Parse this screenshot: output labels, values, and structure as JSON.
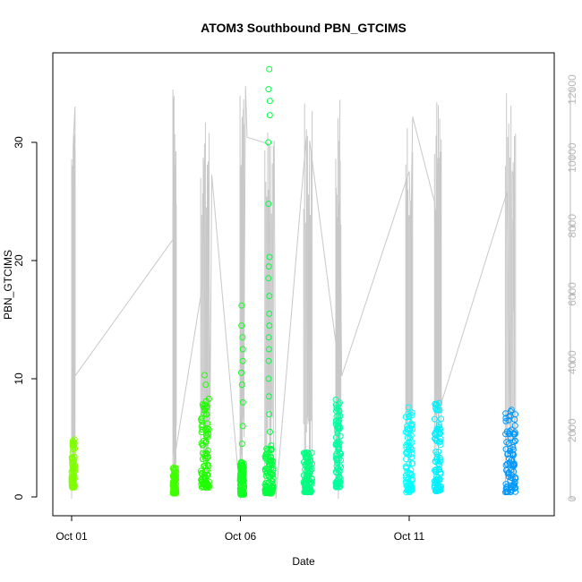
{
  "chart_data": {
    "type": "scatter",
    "title": "ATOM3 Southbound PBN_GTCIMS",
    "xlabel": "Date",
    "ylabel": "PBN_GTCIMS",
    "x_ticks": [
      "Oct 01",
      "Oct 06",
      "Oct 11"
    ],
    "x_tick_days": [
      1,
      6,
      11
    ],
    "xlim_days": [
      1,
      15
    ],
    "ylim": [
      0,
      36
    ],
    "y_ticks": [
      0,
      10,
      20,
      30
    ],
    "y2_ticks": [
      0,
      2000,
      4000,
      6000,
      8000,
      10000,
      12000
    ],
    "y2lim": [
      0,
      12600
    ],
    "point_style": "open circle",
    "colors": {
      "line": "#c8c8c8",
      "right_axis": "#b8b8b8"
    },
    "clusters": [
      {
        "day": 1.05,
        "width": 0.1,
        "ymin": 0.8,
        "ymax": 4.9,
        "color": "#80ff00",
        "outliers": []
      },
      {
        "day": 4.05,
        "width": 0.1,
        "ymin": 0.3,
        "ymax": 2.5,
        "color": "#40ff00",
        "outliers": []
      },
      {
        "day": 4.95,
        "width": 0.25,
        "ymin": 0.8,
        "ymax": 8.5,
        "color": "#20ff00",
        "outliers": [
          10.3,
          9.5
        ]
      },
      {
        "day": 6.05,
        "width": 0.12,
        "ymin": 0.2,
        "ymax": 3.0,
        "color": "#10ff20",
        "outliers": [
          4.5,
          6,
          8,
          9.5,
          10.5,
          11.5,
          12.5,
          13.5,
          14.5,
          16.2
        ]
      },
      {
        "day": 6.85,
        "width": 0.25,
        "ymin": 0.3,
        "ymax": 4.5,
        "color": "#00ff40",
        "outliers": [
          5.5,
          7,
          8.5,
          10,
          11.5,
          12.5,
          13.5,
          14.5,
          15.5,
          17,
          18.5,
          19.5,
          20.3,
          24.8,
          30.0,
          32.3,
          33.5,
          34.5,
          36.2
        ]
      },
      {
        "day": 8.0,
        "width": 0.25,
        "ymin": 0.4,
        "ymax": 3.8,
        "color": "#00ff80",
        "outliers": []
      },
      {
        "day": 8.9,
        "width": 0.15,
        "ymin": 0.8,
        "ymax": 8.3,
        "color": "#00ffa0",
        "outliers": []
      },
      {
        "day": 11.0,
        "width": 0.2,
        "ymin": 0.4,
        "ymax": 7.6,
        "color": "#00ffff",
        "outliers": []
      },
      {
        "day": 11.85,
        "width": 0.2,
        "ymin": 0.5,
        "ymax": 8.0,
        "color": "#00f0ff",
        "outliers": []
      },
      {
        "day": 14.0,
        "width": 0.3,
        "ymin": 0.4,
        "ymax": 7.4,
        "color": "#0099ff",
        "outliers": []
      }
    ],
    "line_points": [
      [
        1.0,
        0
      ],
      [
        1.05,
        10500
      ],
      [
        1.1,
        11500
      ],
      [
        1.1,
        3600
      ],
      [
        4.0,
        7600
      ],
      [
        4.0,
        12000
      ],
      [
        4.05,
        1200
      ],
      [
        4.9,
        6400
      ],
      [
        4.9,
        10000
      ],
      [
        5.0,
        2600
      ],
      [
        5.05,
        9900
      ],
      [
        5.1,
        2300
      ],
      [
        5.15,
        9500
      ],
      [
        6.0,
        0
      ],
      [
        6.05,
        11200
      ],
      [
        6.1,
        3000
      ],
      [
        6.15,
        12100
      ],
      [
        6.2,
        10600
      ],
      [
        6.85,
        10400
      ],
      [
        6.9,
        1200
      ],
      [
        7.0,
        10500
      ],
      [
        7.05,
        0
      ],
      [
        7.95,
        10600
      ],
      [
        8.0,
        2200
      ],
      [
        8.05,
        10500
      ],
      [
        8.9,
        4000
      ],
      [
        8.95,
        11700
      ],
      [
        8.9,
        0
      ],
      [
        8.95,
        9300
      ],
      [
        9.0,
        3600
      ],
      [
        11.0,
        9600
      ],
      [
        11.05,
        7700
      ],
      [
        11.1,
        11200
      ],
      [
        11.75,
        8700
      ],
      [
        11.8,
        7500
      ],
      [
        11.85,
        10000
      ],
      [
        11.95,
        2800
      ],
      [
        13.9,
        9000
      ],
      [
        14.0,
        1200
      ],
      [
        14.05,
        9600
      ],
      [
        14.1,
        9500
      ],
      [
        14.1,
        5500
      ]
    ]
  }
}
